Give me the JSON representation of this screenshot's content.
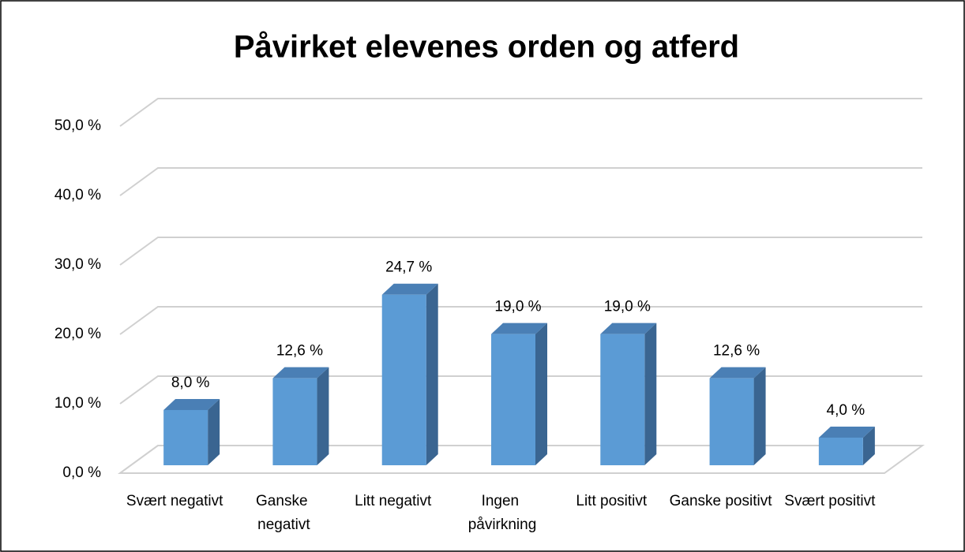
{
  "chart_data": {
    "type": "bar3d",
    "title": "Påvirket elevenes orden og atferd",
    "categories": [
      "Svært negativt",
      "Ganske negativt",
      "Litt negativt",
      "Ingen påvirkning",
      "Litt positivt",
      "Ganske positivt",
      "Svært positivt"
    ],
    "values": [
      8.0,
      12.6,
      24.7,
      19.0,
      19.0,
      12.6,
      4.0
    ],
    "value_labels": [
      "8,0 %",
      "12,6 %",
      "24,7 %",
      "19,0 %",
      "19,0 %",
      "12,6 %",
      "4,0 %"
    ],
    "color": "#5b9bd5",
    "ylim": [
      0,
      50
    ],
    "yticks": [
      {
        "value": 0,
        "label": "0,0 %"
      },
      {
        "value": 10,
        "label": "10,0 %"
      },
      {
        "value": 20,
        "label": "20,0 %"
      },
      {
        "value": 30,
        "label": "30,0 %"
      },
      {
        "value": 40,
        "label": "40,0 %"
      },
      {
        "value": 50,
        "label": "50,0 %"
      }
    ],
    "grid": true
  }
}
